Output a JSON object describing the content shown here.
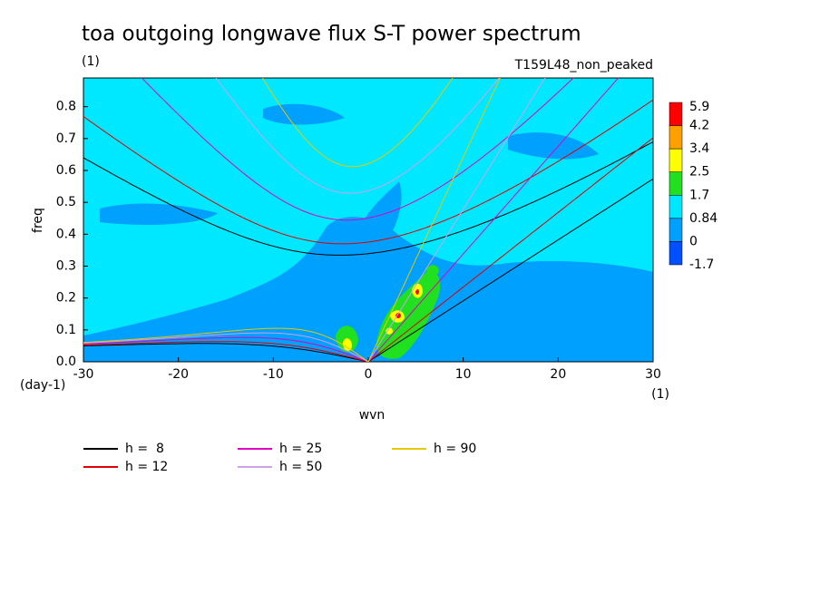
{
  "chart_data": {
    "type": "contour",
    "title": "toa outgoing longwave flux S-T power spectrum",
    "subtitle": "(1)",
    "run_label": "T159L48_non_peaked",
    "x_label": "wvn",
    "y_label": "freq",
    "x_unit": "(1)",
    "y_unit": "(day-1)",
    "xlim": [
      -30,
      30
    ],
    "xticks": [
      -30,
      -20,
      -10,
      0,
      10,
      20,
      30
    ],
    "ylim": [
      0,
      0.89
    ],
    "yticks": [
      {
        "value": 0,
        "label": "0.0"
      },
      0.1,
      0.2,
      0.3,
      0.4,
      0.5,
      0.6,
      0.7,
      0.8
    ],
    "colorbar": {
      "levels": [
        5.9,
        4.2,
        3.4,
        2.5,
        1.7,
        0.84,
        0,
        -1.7
      ],
      "colors": [
        "#ff0000",
        "#ffa000",
        "#ffff00",
        "#20e020",
        "#00e8ff",
        "#00a0ff",
        "#0050ff"
      ]
    },
    "series": [
      {
        "name": "h =  8",
        "h": 8,
        "color": "#000000"
      },
      {
        "name": "h = 12",
        "h": 12,
        "color": "#e00000"
      },
      {
        "name": "h = 25",
        "h": 25,
        "color": "#e000c0"
      },
      {
        "name": "h = 50",
        "h": 50,
        "color": "#d0a0e8"
      },
      {
        "name": "h = 90",
        "h": 90,
        "color": "#e8c800"
      }
    ]
  }
}
